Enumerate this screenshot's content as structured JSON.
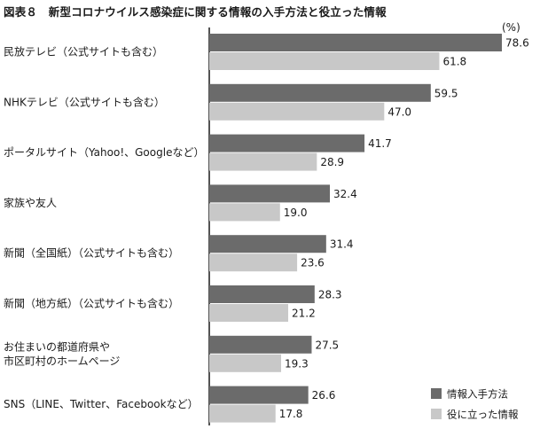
{
  "figure": {
    "title": "図表８　新型コロナウイルス感染症に関する情報の入手方法と役立った情報"
  },
  "chart_data": {
    "type": "bar",
    "orientation": "horizontal",
    "unit": "(%)",
    "categories": [
      [
        "民放テレビ（公式サイトも含む）"
      ],
      [
        "NHKテレビ（公式サイトも含む）"
      ],
      [
        "ポータルサイト（Yahoo!、Googleなど）"
      ],
      [
        "家族や友人"
      ],
      [
        "新聞（全国紙）（公式サイトも含む）"
      ],
      [
        "新聞（地方紙）（公式サイトも含む）"
      ],
      [
        "お住まいの都道府県や",
        "市区町村のホームページ"
      ],
      [
        "SNS（LINE、Twitter、Facebookなど）"
      ]
    ],
    "series": [
      {
        "name": "情報入手方法",
        "color": "#6b6b6b",
        "values": [
          78.6,
          59.5,
          41.7,
          32.4,
          31.4,
          28.3,
          27.5,
          26.6
        ],
        "labels": [
          "78.6",
          "59.5",
          "41.7",
          "32.4",
          "31.4",
          "28.3",
          "27.5",
          "26.6"
        ]
      },
      {
        "name": "役に立った情報",
        "color": "#c8c8c8",
        "values": [
          61.8,
          47.0,
          28.9,
          19.0,
          23.6,
          21.2,
          19.3,
          17.8
        ],
        "labels": [
          "61.8",
          "47.0",
          "28.9",
          "19.0",
          "23.6",
          "21.2",
          "19.3",
          "17.8"
        ]
      }
    ],
    "xlim": [
      0,
      80
    ],
    "axis_color": "#1a1a1a",
    "grid": false,
    "legend_position": "bottom-right"
  }
}
